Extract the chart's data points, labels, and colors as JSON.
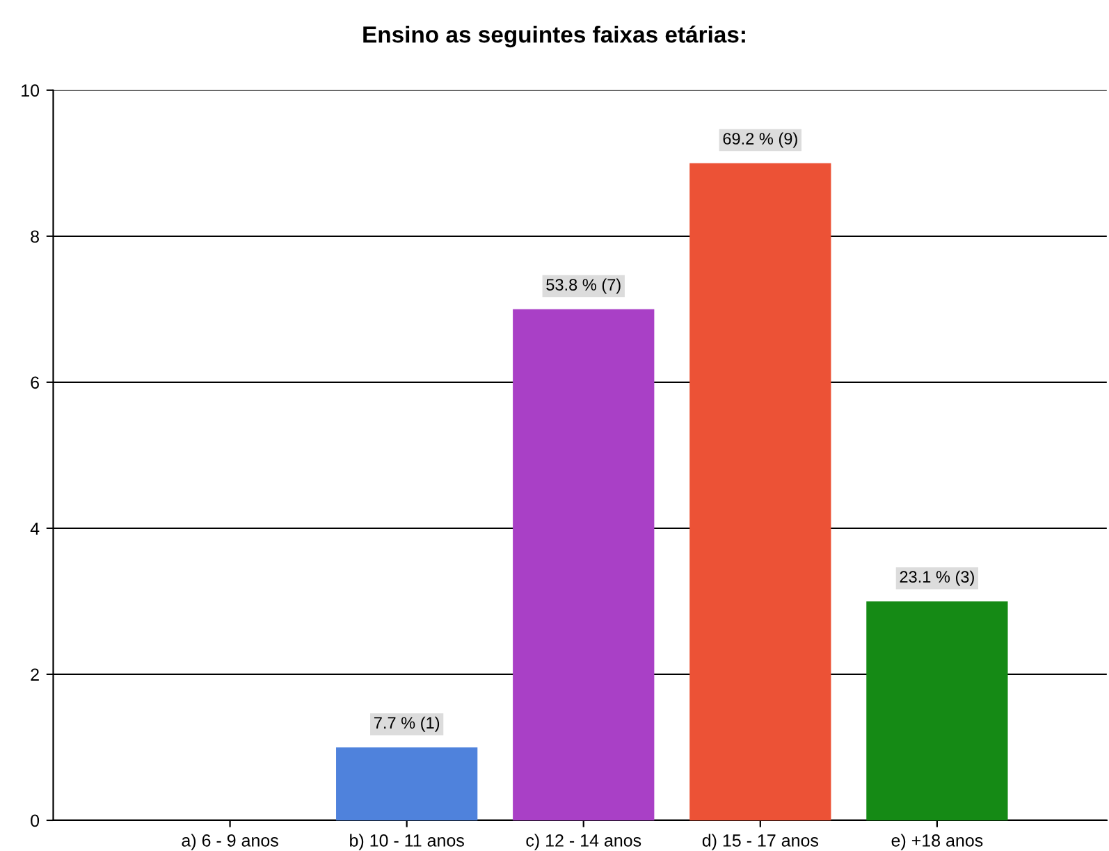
{
  "chart_data": {
    "type": "bar",
    "title": "Ensino as seguintes faixas etárias:",
    "categories": [
      "a) 6 - 9 anos",
      "b) 10 - 11 anos",
      "c) 12 - 14 anos",
      "d) 15 - 17 anos",
      "e) +18 anos"
    ],
    "values": [
      0,
      1,
      7,
      9,
      3
    ],
    "colors": [
      "#e0b030",
      "#4f82dc",
      "#a940c6",
      "#ec5236",
      "#158a15"
    ],
    "value_labels": [
      null,
      "7.7 % (1)",
      "53.8 % (7)",
      "69.2 % (9)",
      "23.1 % (3)"
    ],
    "ylim": [
      0,
      10
    ],
    "yticks": [
      0,
      2,
      4,
      6,
      8,
      10
    ],
    "grid": "y",
    "legend": false
  }
}
